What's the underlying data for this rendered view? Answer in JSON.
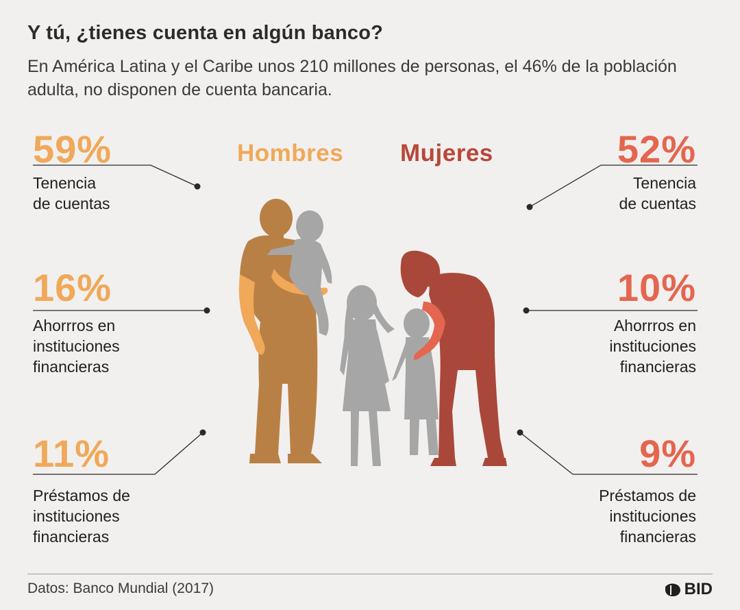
{
  "header": {
    "title": "Y tú, ¿tienes cuenta en algún banco?",
    "subtitle": "En América Latina y el Caribe unos 210 millones de personas, el 46% de la población adulta, no disponen de cuenta bancaria."
  },
  "genders": {
    "men": "Hombres",
    "women": "Mujeres"
  },
  "men_stats": [
    {
      "value": "59%",
      "label_lines": [
        "Tenencia",
        "de cuentas"
      ]
    },
    {
      "value": "16%",
      "label_lines": [
        "Ahorrros en",
        "instituciones",
        "financieras"
      ]
    },
    {
      "value": "11%",
      "label_lines": [
        "Préstamos de",
        "instituciones",
        "financieras"
      ]
    }
  ],
  "women_stats": [
    {
      "value": "52%",
      "label_lines": [
        "Tenencia",
        "de cuentas"
      ]
    },
    {
      "value": "10%",
      "label_lines": [
        "Ahorrros en",
        "instituciones",
        "financieras"
      ]
    },
    {
      "value": "9%",
      "label_lines": [
        "Préstamos de",
        "instituciones",
        "financieras"
      ]
    }
  ],
  "footer": {
    "source": "Datos: Banco Mundial (2017)",
    "logo_text": "BID"
  },
  "colors": {
    "men_accent": "#f0a859",
    "women_accent": "#e46650",
    "men_figure": "#b98046",
    "women_figure": "#a9483a",
    "children_figure": "#a6a6a6"
  }
}
